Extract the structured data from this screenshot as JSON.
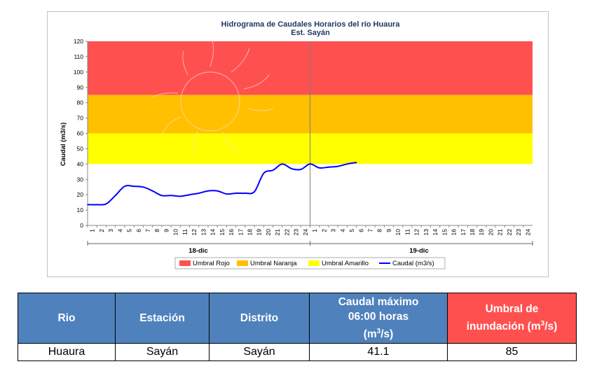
{
  "chart_data": {
    "type": "line",
    "title": "Hidrograma de Caudales Horarios del río Huaura",
    "subtitle": "Est. Sayán",
    "ylabel": "Caudal  (m3/s)",
    "ylim": [
      0,
      120
    ],
    "yticks": [
      0,
      10,
      20,
      30,
      40,
      50,
      60,
      70,
      80,
      90,
      100,
      110,
      120
    ],
    "x_ticks": [
      "1",
      "2",
      "3",
      "4",
      "5",
      "6",
      "7",
      "8",
      "9",
      "10",
      "11",
      "12",
      "13",
      "14",
      "15",
      "16",
      "17",
      "18",
      "19",
      "20",
      "21",
      "22",
      "23",
      "24",
      "1",
      "2",
      "3",
      "4",
      "5",
      "6",
      "7",
      "8",
      "9",
      "10",
      "11",
      "12",
      "13",
      "14",
      "15",
      "16",
      "17",
      "18",
      "19",
      "20",
      "21",
      "22",
      "23",
      "24"
    ],
    "day_labels": [
      "18-dic",
      "19-dic"
    ],
    "bands": [
      {
        "name": "Umbral Rojo",
        "from": 85,
        "to": 120,
        "color": "#ff5050"
      },
      {
        "name": "Umbral Naranja",
        "from": 60,
        "to": 85,
        "color": "#ffc000"
      },
      {
        "name": "Umbral Amarillo",
        "from": 40,
        "to": 60,
        "color": "#ffff00"
      }
    ],
    "series": [
      {
        "name": "Caudal (m3/s)",
        "color": "#0000ff",
        "values": [
          13.5,
          13.5,
          14,
          19.5,
          25.5,
          25.5,
          25,
          22.5,
          19.5,
          19.5,
          19,
          20,
          21,
          22.5,
          22.5,
          20.5,
          21,
          21,
          22,
          34,
          36,
          40,
          37,
          36.5,
          40,
          37.5,
          38,
          38.5,
          40,
          41
        ]
      }
    ],
    "legend": [
      "Umbral Rojo",
      "Umbral Naranja",
      "Umbral Amarillo",
      "Caudal (m3/s)"
    ],
    "legend_position": "bottom",
    "grid": false
  },
  "table": {
    "headers": {
      "rio": "Rio",
      "estacion": "Estación",
      "distrito": "Distrito",
      "caudal_l1": "Caudal máximo",
      "caudal_l2": "06:00 horas",
      "caudal_l3": "(m",
      "caudal_sup": "3",
      "caudal_l3b": "/s)",
      "umbral_l1": "Umbral de",
      "umbral_l2": "inundación (m",
      "umbral_sup": "3",
      "umbral_l2b": "/s)"
    },
    "row": {
      "rio": "Huaura",
      "estacion": "Sayán",
      "distrito": "Sayán",
      "caudal": "41.1",
      "umbral": "85"
    }
  }
}
